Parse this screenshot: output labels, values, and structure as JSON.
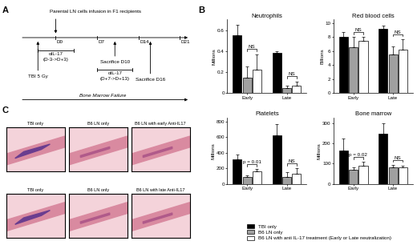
{
  "panel_labels": [
    "A",
    "B",
    "C"
  ],
  "timeline": {
    "title": "Parental LN cells infusion in F1 recipients",
    "days": [
      {
        "value": 0,
        "label": "D0"
      },
      {
        "value": 7,
        "label": "D7"
      },
      {
        "value": 14,
        "label": "D14"
      },
      {
        "value": 21,
        "label": "D21"
      }
    ],
    "tbi": {
      "label": "TBI 5 Gy",
      "day": -3
    },
    "treatments": [
      {
        "label": "αIL-17",
        "period": "(D-3->D+3)",
        "start": -3,
        "end": 3
      },
      {
        "label": "αIL-17",
        "period": "(D+7->D+13)",
        "start": 7,
        "end": 13
      }
    ],
    "sacrifices": [
      {
        "label": "Sacrifice D10",
        "day": 10
      },
      {
        "label": "Sacrifice D16",
        "day": 16
      }
    ],
    "outcome": "Bone Marrow Failure"
  },
  "chart_data": [
    {
      "type": "bar",
      "title": "Neutrophils",
      "ylabel": "Millions",
      "categories": [
        "Early",
        "Late"
      ],
      "series": [
        {
          "name": "TBI only",
          "color": "#000000",
          "values": [
            0.55,
            0.38
          ],
          "errors": [
            0.1,
            0.02
          ]
        },
        {
          "name": "B6 LN only",
          "color": "#a0a0a0",
          "values": [
            0.15,
            0.05
          ],
          "errors": [
            0.1,
            0.02
          ]
        },
        {
          "name": "B6 LN with anti IL-17 treatment (Early or Late neutralization)",
          "color": "#ffffff",
          "values": [
            0.22,
            0.07
          ],
          "errors": [
            0.15,
            0.04
          ]
        }
      ],
      "ylim": [
        0,
        0.7
      ],
      "yticks": [
        0,
        0.2,
        0.4,
        0.6
      ],
      "annotations": [
        {
          "category": "Early",
          "text": "NS"
        },
        {
          "category": "Late",
          "text": "NS"
        }
      ]
    },
    {
      "type": "bar",
      "title": "Red blood cells",
      "ylabel": "Billions",
      "categories": [
        "Early",
        "Late"
      ],
      "series": [
        {
          "name": "TBI only",
          "color": "#000000",
          "values": [
            8.0,
            9.2
          ],
          "errors": [
            0.7,
            0.4
          ]
        },
        {
          "name": "B6 LN only",
          "color": "#a0a0a0",
          "values": [
            6.5,
            5.5
          ],
          "errors": [
            1.5,
            1.2
          ]
        },
        {
          "name": "B6 LN with anti IL-17 treatment (Early or Late neutralization)",
          "color": "#ffffff",
          "values": [
            7.5,
            6.2
          ],
          "errors": [
            0.5,
            1.5
          ]
        }
      ],
      "ylim": [
        0,
        10.5
      ],
      "yticks": [
        0,
        2,
        4,
        6,
        8,
        10
      ],
      "annotations": [
        {
          "category": "Early",
          "text": "NS"
        },
        {
          "category": "Late",
          "text": "NS"
        }
      ]
    },
    {
      "type": "bar",
      "title": "Platelets",
      "ylabel": "Millions",
      "categories": [
        "Early",
        "Late"
      ],
      "series": [
        {
          "name": "TBI only",
          "color": "#000000",
          "values": [
            310,
            620
          ],
          "errors": [
            70,
            150
          ]
        },
        {
          "name": "B6 LN only",
          "color": "#a0a0a0",
          "values": [
            90,
            90
          ],
          "errors": [
            20,
            60
          ]
        },
        {
          "name": "B6 LN with anti IL-17 treatment (Early or Late neutralization)",
          "color": "#ffffff",
          "values": [
            160,
            130
          ],
          "errors": [
            30,
            70
          ]
        }
      ],
      "ylim": [
        0,
        850
      ],
      "yticks": [
        0,
        200,
        400,
        600,
        800
      ],
      "annotations": [
        {
          "category": "Early",
          "text": "p = 0.01"
        },
        {
          "category": "Late",
          "text": "NS"
        }
      ]
    },
    {
      "type": "bar",
      "title": "Bone marrow",
      "ylabel": "Millions",
      "categories": [
        "Early",
        "Late"
      ],
      "series": [
        {
          "name": "TBI only",
          "color": "#000000",
          "values": [
            165,
            250
          ],
          "errors": [
            60,
            50
          ]
        },
        {
          "name": "B6 LN only",
          "color": "#a0a0a0",
          "values": [
            70,
            80
          ],
          "errors": [
            10,
            15
          ]
        },
        {
          "name": "B6 LN with anti IL-17 treatment (Early or Late neutralization)",
          "color": "#ffffff",
          "values": [
            90,
            80
          ],
          "errors": [
            20,
            10
          ]
        }
      ],
      "ylim": [
        0,
        330
      ],
      "yticks": [
        0,
        100,
        200,
        300
      ],
      "annotations": [
        {
          "category": "Early",
          "text": "p = 0.02"
        },
        {
          "category": "Late",
          "text": "NS"
        }
      ],
      "legend": "lower center"
    }
  ],
  "histology": {
    "rows": [
      [
        "TBI only",
        "B6 LN only",
        "B6 LN with early Anti-IL17"
      ],
      [
        "TBI only",
        "B6 LN only",
        "B6 LN with late Anti-IL17"
      ]
    ]
  }
}
